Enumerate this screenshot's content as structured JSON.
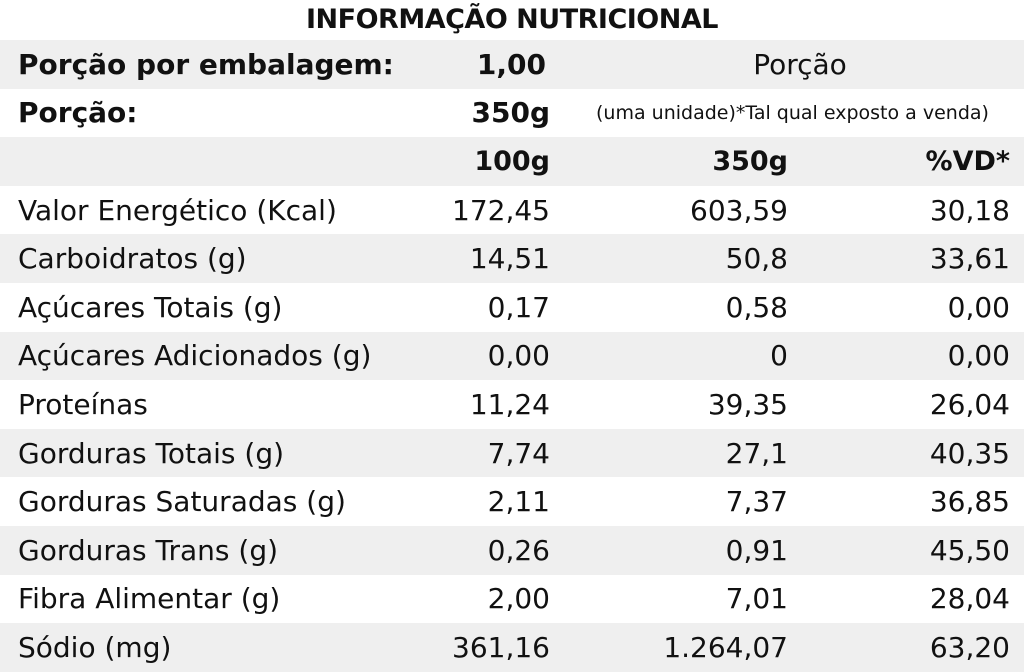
{
  "title": "INFORMAÇÃO NUTRICIONAL",
  "serving": {
    "per_package_label": "Porção por embalagem:",
    "per_package_value": "1,00",
    "portion_heading": "Porção",
    "portion_label": "Porção:",
    "portion_value": "350g",
    "portion_note": "(uma unidade)*Tal qual exposto a venda)"
  },
  "columns": {
    "per100": "100g",
    "per350": "350g",
    "vd": "%VD*"
  },
  "rows": [
    {
      "label": "Valor Energético (Kcal)",
      "per100": "172,45",
      "per350": "603,59",
      "vd": "30,18"
    },
    {
      "label": "Carboidratos (g)",
      "per100": "14,51",
      "per350": "50,8",
      "vd": "33,61"
    },
    {
      "label": "Açúcares Totais (g)",
      "per100": "0,17",
      "per350": "0,58",
      "vd": "0,00"
    },
    {
      "label": "Açúcares Adicionados (g)",
      "per100": "0,00",
      "per350": "0",
      "vd": "0,00"
    },
    {
      "label": "Proteínas",
      "per100": "11,24",
      "per350": "39,35",
      "vd": "26,04"
    },
    {
      "label": "Gorduras Totais (g)",
      "per100": "7,74",
      "per350": "27,1",
      "vd": "40,35"
    },
    {
      "label": "Gorduras Saturadas (g)",
      "per100": "2,11",
      "per350": "7,37",
      "vd": "36,85"
    },
    {
      "label": "Gorduras Trans (g)",
      "per100": "0,26",
      "per350": "0,91",
      "vd": "45,50"
    },
    {
      "label": "Fibra Alimentar (g)",
      "per100": "2,00",
      "per350": "7,01",
      "vd": "28,04"
    },
    {
      "label": "Sódio (mg)",
      "per100": "361,16",
      "per350": "1.264,07",
      "vd": "63,20"
    }
  ],
  "colors": {
    "row_shade": "#efefef",
    "text": "#111111"
  }
}
